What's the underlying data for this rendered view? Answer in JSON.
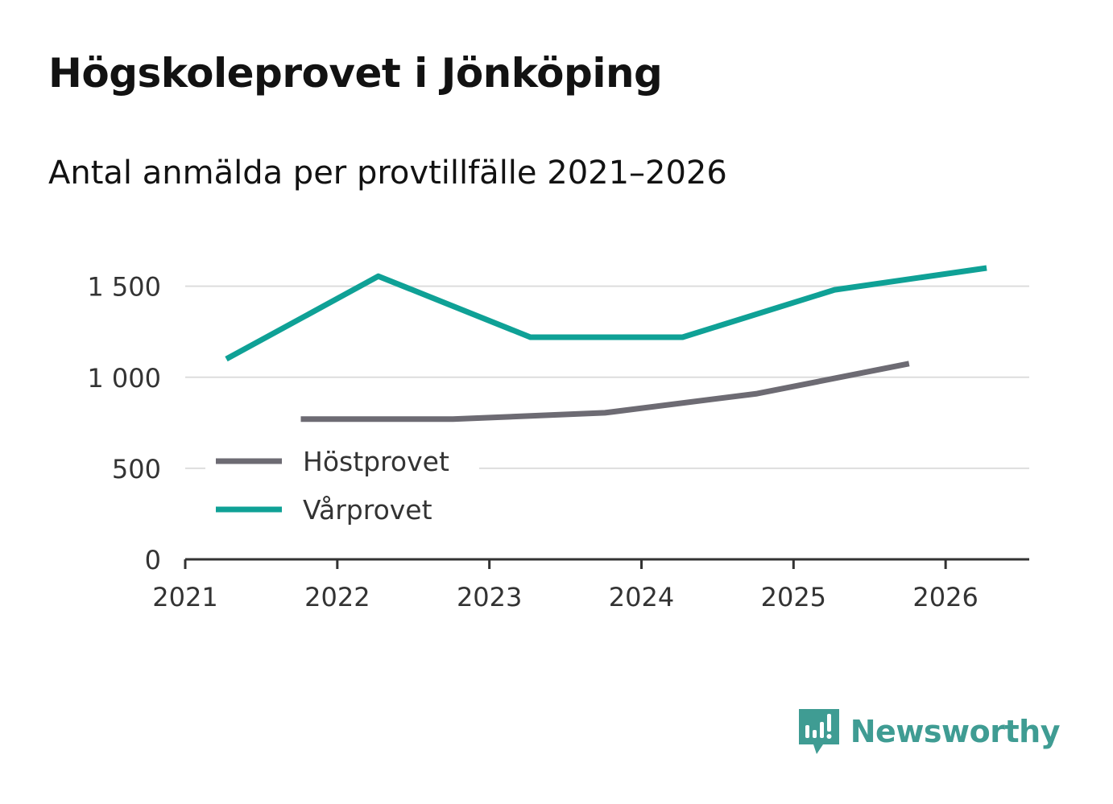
{
  "title": "Högskoleprovet i Jönköping",
  "subtitle": "Antal anmälda per provtillfälle 2021–2026",
  "brand": {
    "name": "Newsworthy",
    "icon": "newsworthy-logo-icon"
  },
  "colors": {
    "series_host": "#6d6b73",
    "series_var": "#0fa196",
    "grid": "#dddddd",
    "axis": "#333333",
    "brand": "#3f9c93"
  },
  "chart_data": {
    "type": "line",
    "title": "Högskoleprovet i Jönköping",
    "subtitle": "Antal anmälda per provtillfälle 2021–2026",
    "xlabel": "",
    "ylabel": "",
    "xlim": [
      2021,
      2026.55
    ],
    "ylim": [
      0,
      1600
    ],
    "x_ticks": [
      2021,
      2022,
      2023,
      2024,
      2025,
      2026
    ],
    "x_tick_labels": [
      "2021",
      "2022",
      "2023",
      "2024",
      "2025",
      "2026"
    ],
    "y_ticks": [
      0,
      500,
      1000,
      1500
    ],
    "y_tick_labels": [
      "0",
      "500",
      "1 000",
      "1 500"
    ],
    "grid": true,
    "legend_position": "bottom-left",
    "series": [
      {
        "name": "Höstprovet",
        "color": "#6d6b73",
        "x": [
          2021.76,
          2022.76,
          2023.76,
          2024.76,
          2025.76
        ],
        "y": [
          770,
          770,
          805,
          910,
          1075
        ]
      },
      {
        "name": "Vårprovet",
        "color": "#0fa196",
        "x": [
          2021.27,
          2022.27,
          2023.27,
          2024.27,
          2025.27,
          2026.27
        ],
        "y": [
          1100,
          1555,
          1220,
          1220,
          1480,
          1600
        ]
      }
    ]
  }
}
